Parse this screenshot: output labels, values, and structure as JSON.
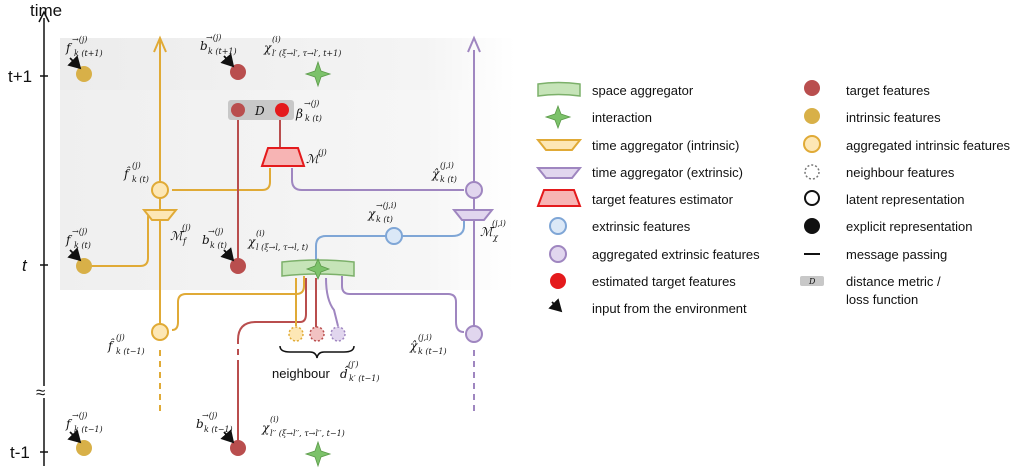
{
  "axis": {
    "title": "time",
    "tick_top": "t+1",
    "tick_mid": "t",
    "tick_bot": "t-1",
    "break_mark": "≈"
  },
  "nodes": {
    "f_top": "f",
    "f_top_sup": "→(j)",
    "f_top_sub": "k (t+1)",
    "b_top": "b",
    "b_top_sup": "→(j)",
    "b_top_sub": "k (t+1)",
    "chi_top": "χ",
    "chi_top_sup": "(i)",
    "chi_top_sub": "l′ (ξ→l′, τ→l′, t+1)",
    "D_box": "D",
    "beta": "β",
    "beta_sup": "→(j)",
    "beta_sub": "k (t)",
    "M_label": "ℳ",
    "M_sup": "(j)",
    "fhat_t": "f̂",
    "fhat_t_sup": "(j)",
    "fhat_t_sub": "k (t)",
    "chihat_t": "χ̂",
    "chihat_t_sup": "(j,i)",
    "chihat_t_sub": "k (t)",
    "Mf": "ℳ̄",
    "Mf_sup": "(j)",
    "Mf_sub": "f",
    "Mx": "ℳ̄",
    "Mx_sup": "(j,i)",
    "Mx_sub": "χ",
    "f_mid": "f",
    "f_mid_sup": "→(j)",
    "f_mid_sub": "k (t)",
    "b_mid": "b",
    "b_mid_sup": "→(j)",
    "b_mid_sub": "k (t)",
    "chi_mid": "χ",
    "chi_mid_sup": "(i)",
    "chi_mid_sub": "l (ξ→l, τ→l, t)",
    "chiv": "χ",
    "chiv_sup": "→(j,i)",
    "chiv_sub": "k (t)",
    "fhat_tm1": "f̂",
    "fhat_tm1_sup": "(j)",
    "fhat_tm1_sub": "k (t−1)",
    "chihat_tm1": "χ̂",
    "chihat_tm1_sup": "(j,i)",
    "chihat_tm1_sub": "k (t−1)",
    "neighbour_text": "neighbour",
    "neighbour_d": "d̂",
    "neighbour_d_sup": "(j′)",
    "neighbour_d_sub": "k′ (t−1)",
    "f_bot": "f",
    "f_bot_sup": "→(j)",
    "f_bot_sub": "k (t−1)",
    "b_bot": "b",
    "b_bot_sup": "→(j)",
    "b_bot_sub": "k (t−1)",
    "chi_bot": "χ",
    "chi_bot_sup": "(i)",
    "chi_bot_sub": "l′′ (ξ→l′′, τ→l′′, t−1)"
  },
  "legend": {
    "col1": [
      "space aggregator",
      "interaction",
      "time aggregator (intrinsic)",
      "time aggregator (extrinsic)",
      "target features estimator",
      "extrinsic features",
      "aggregated extrinsic features",
      "estimated target features",
      "input from the environment"
    ],
    "col2": [
      "target features",
      "intrinsic features",
      "aggregated intrinsic features",
      "neighbour features",
      "latent representation",
      "explicit representation",
      "message passing",
      "distance metric /",
      "loss function"
    ],
    "dist_icon_letter": "D"
  },
  "colors": {
    "intrinsic": "#e0aa36",
    "extrinsic": "#9f86c0",
    "target": "#b94e4e",
    "estimated": "#e41a1c",
    "extrinsic_feat": "#7fa6d6",
    "space": "#8cc47a",
    "interaction": "#7cc26a",
    "band": "#f1f1f1"
  }
}
